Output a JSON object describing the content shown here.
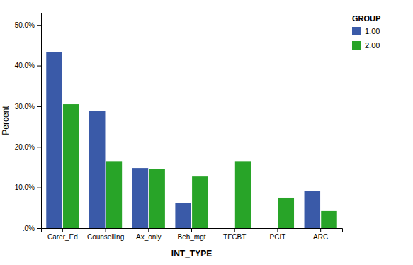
{
  "chart_data": {
    "type": "bar",
    "categories": [
      "Carer_Ed",
      "Counselling",
      "Ax_only",
      "Beh_mgt",
      "TFCBT",
      "PCIT",
      "ARC"
    ],
    "series": [
      {
        "name": "1.00",
        "color": "#3a5aa8",
        "values": [
          43.3,
          28.8,
          14.8,
          6.2,
          0.0,
          0.0,
          9.2
        ]
      },
      {
        "name": "2.00",
        "color": "#28a428",
        "values": [
          30.5,
          16.5,
          14.6,
          12.7,
          16.5,
          7.5,
          4.2
        ]
      }
    ],
    "ylabel": "Percent",
    "xlabel": "INT_TYPE",
    "legend_title": "GROUP",
    "ylim": [
      0,
      53
    ],
    "yticks": [
      {
        "value": 0.0,
        "label": ".0%"
      },
      {
        "value": 10.0,
        "label": "10.0%"
      },
      {
        "value": 20.0,
        "label": "20.0%"
      },
      {
        "value": 30.0,
        "label": "30.0%"
      },
      {
        "value": 40.0,
        "label": "40.0%"
      },
      {
        "value": 50.0,
        "label": "50.0%"
      }
    ],
    "grid": false,
    "legend": "right"
  }
}
